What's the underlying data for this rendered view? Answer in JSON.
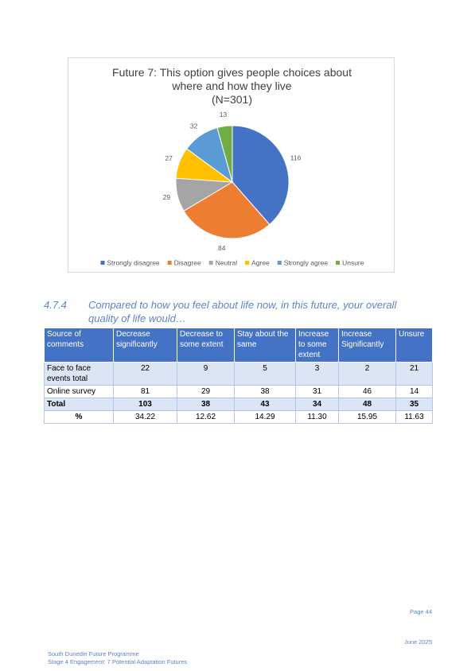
{
  "chart_data": {
    "type": "pie",
    "title": "Future 7: This option gives people choices about where and how they live",
    "subtitle": "(N=301)",
    "categories": [
      "Strongly disagree",
      "Disagree",
      "Neutral",
      "Agree",
      "Strongly agree",
      "Unsure"
    ],
    "values": [
      116,
      84,
      29,
      27,
      32,
      13
    ],
    "colors": [
      "#4472c4",
      "#ed7d31",
      "#a5a5a5",
      "#ffc000",
      "#5b9bd5",
      "#70ad47"
    ],
    "legend": "bottom"
  },
  "section": {
    "number": "4.7.4",
    "heading": "Compared to how you feel about life now, in this future, your overall quality of life would…"
  },
  "table": {
    "header": [
      "Source of comments",
      "Decrease significantly",
      "Decrease to some extent",
      "Stay about the same",
      "Increase to some extent",
      "Increase Significantly",
      "Unsure"
    ],
    "rows": [
      [
        "Face to face events total",
        "22",
        "9",
        "5",
        "3",
        "2",
        "21"
      ],
      [
        "Online survey",
        "81",
        "29",
        "38",
        "31",
        "46",
        "14"
      ],
      [
        "Total",
        "103",
        "38",
        "43",
        "34",
        "48",
        "35"
      ],
      [
        "%",
        "34.22",
        "12.62",
        "14.29",
        "11.30",
        "15.95",
        "11.63"
      ]
    ]
  },
  "footer": {
    "page": "Page 44",
    "date": "June 2025",
    "programme": "South Dunedin Future Programme",
    "stage": "Stage 4 Engagement: 7 Potential Adaptation Futures"
  }
}
